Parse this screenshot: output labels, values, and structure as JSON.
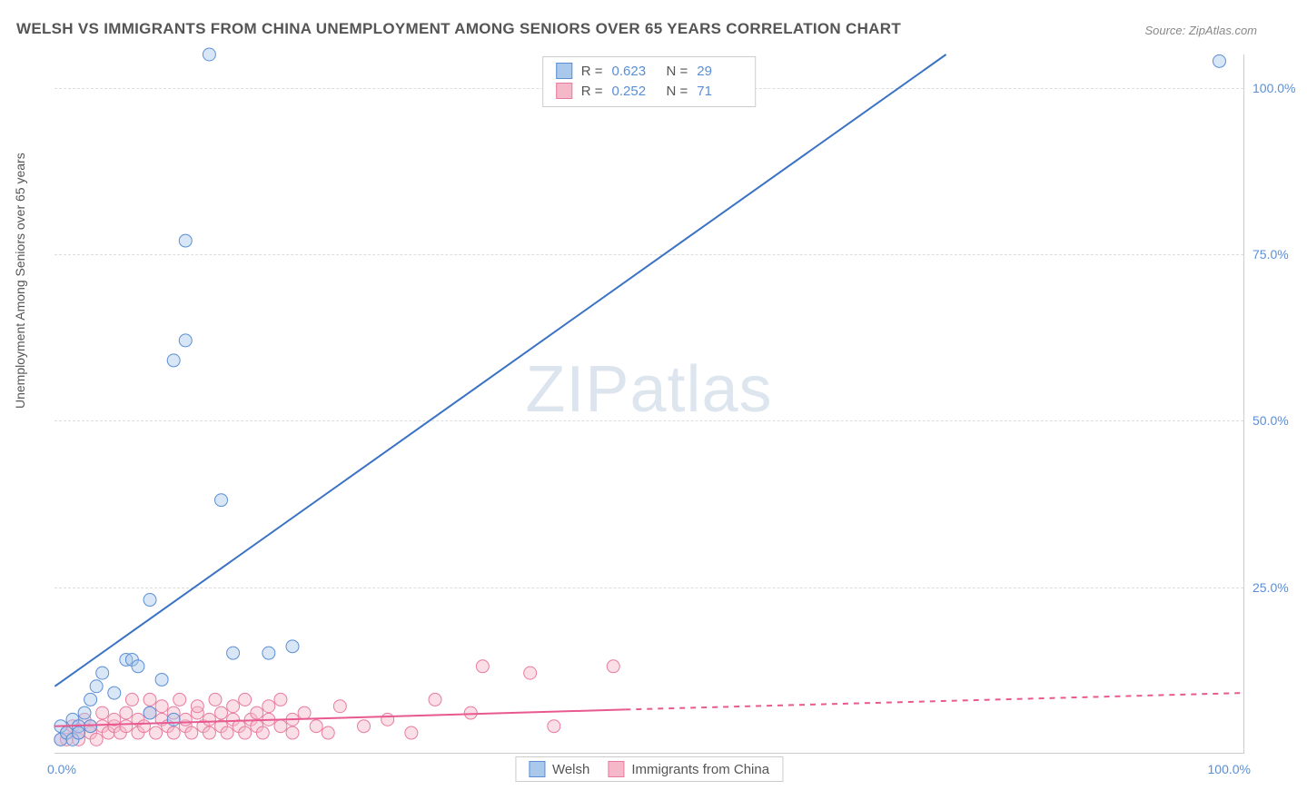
{
  "title": "WELSH VS IMMIGRANTS FROM CHINA UNEMPLOYMENT AMONG SENIORS OVER 65 YEARS CORRELATION CHART",
  "source": "Source: ZipAtlas.com",
  "ylabel": "Unemployment Among Seniors over 65 years",
  "watermark_a": "ZIP",
  "watermark_b": "atlas",
  "chart": {
    "type": "scatter",
    "xlim": [
      0,
      100
    ],
    "ylim": [
      0,
      105
    ],
    "xtick_labels": {
      "min": "0.0%",
      "max": "100.0%"
    },
    "ytick_labels": [
      "25.0%",
      "50.0%",
      "75.0%",
      "100.0%"
    ],
    "ytick_values": [
      25,
      50,
      75,
      100
    ],
    "background_color": "#ffffff",
    "grid_color": "#dddddd",
    "axis_color": "#cccccc",
    "tick_label_color": "#5a8fd6",
    "marker_radius": 7,
    "marker_opacity": 0.45,
    "series": [
      {
        "name": "Welsh",
        "color_fill": "#a9c8ec",
        "color_stroke": "#5a8fd6",
        "line_color": "#3a72c4",
        "line_width": 2,
        "trend": {
          "x1": 0,
          "y1": 10,
          "x2": 75,
          "y2": 105,
          "dashed_after_x": 100
        },
        "R": "0.623",
        "N": "29",
        "points": [
          [
            0.5,
            2
          ],
          [
            0.5,
            4
          ],
          [
            1,
            3
          ],
          [
            1.5,
            2
          ],
          [
            1.5,
            5
          ],
          [
            2,
            4
          ],
          [
            2,
            3
          ],
          [
            2.5,
            6
          ],
          [
            3,
            4
          ],
          [
            3,
            8
          ],
          [
            3.5,
            10
          ],
          [
            4,
            12
          ],
          [
            5,
            9
          ],
          [
            6,
            14
          ],
          [
            6.5,
            14
          ],
          [
            7,
            13
          ],
          [
            8,
            6
          ],
          [
            8,
            23
          ],
          [
            9,
            11
          ],
          [
            10,
            5
          ],
          [
            10,
            59
          ],
          [
            11,
            62
          ],
          [
            11,
            77
          ],
          [
            13,
            105
          ],
          [
            14,
            38
          ],
          [
            15,
            15
          ],
          [
            18,
            15
          ],
          [
            20,
            16
          ],
          [
            98,
            104
          ]
        ]
      },
      {
        "name": "Immigrants from China",
        "color_fill": "#f5b8c9",
        "color_stroke": "#e87ba0",
        "line_color": "#e85a8f",
        "line_width": 2,
        "trend": {
          "x1": 0,
          "y1": 4,
          "x2": 48,
          "y2": 6.5,
          "dashed_after_x": 48,
          "x3": 100,
          "y3": 9
        },
        "R": "0.252",
        "N": "71",
        "points": [
          [
            0.5,
            2
          ],
          [
            1,
            2
          ],
          [
            1,
            3
          ],
          [
            1.5,
            4
          ],
          [
            2,
            2
          ],
          [
            2,
            3
          ],
          [
            2.5,
            5
          ],
          [
            3,
            3
          ],
          [
            3,
            4
          ],
          [
            3.5,
            2
          ],
          [
            4,
            4
          ],
          [
            4,
            6
          ],
          [
            4.5,
            3
          ],
          [
            5,
            4
          ],
          [
            5,
            5
          ],
          [
            5.5,
            3
          ],
          [
            6,
            4
          ],
          [
            6,
            6
          ],
          [
            6.5,
            8
          ],
          [
            7,
            3
          ],
          [
            7,
            5
          ],
          [
            7.5,
            4
          ],
          [
            8,
            6
          ],
          [
            8,
            8
          ],
          [
            8.5,
            3
          ],
          [
            9,
            5
          ],
          [
            9,
            7
          ],
          [
            9.5,
            4
          ],
          [
            10,
            3
          ],
          [
            10,
            6
          ],
          [
            10.5,
            8
          ],
          [
            11,
            4
          ],
          [
            11,
            5
          ],
          [
            11.5,
            3
          ],
          [
            12,
            6
          ],
          [
            12,
            7
          ],
          [
            12.5,
            4
          ],
          [
            13,
            5
          ],
          [
            13,
            3
          ],
          [
            13.5,
            8
          ],
          [
            14,
            4
          ],
          [
            14,
            6
          ],
          [
            14.5,
            3
          ],
          [
            15,
            5
          ],
          [
            15,
            7
          ],
          [
            15.5,
            4
          ],
          [
            16,
            3
          ],
          [
            16,
            8
          ],
          [
            16.5,
            5
          ],
          [
            17,
            4
          ],
          [
            17,
            6
          ],
          [
            17.5,
            3
          ],
          [
            18,
            7
          ],
          [
            18,
            5
          ],
          [
            19,
            4
          ],
          [
            19,
            8
          ],
          [
            20,
            3
          ],
          [
            20,
            5
          ],
          [
            21,
            6
          ],
          [
            22,
            4
          ],
          [
            23,
            3
          ],
          [
            24,
            7
          ],
          [
            26,
            4
          ],
          [
            28,
            5
          ],
          [
            30,
            3
          ],
          [
            32,
            8
          ],
          [
            35,
            6
          ],
          [
            36,
            13
          ],
          [
            40,
            12
          ],
          [
            42,
            4
          ],
          [
            47,
            13
          ]
        ]
      }
    ]
  },
  "legend_top": {
    "rows": [
      {
        "swatch_fill": "#a9c8ec",
        "swatch_stroke": "#5a8fd6",
        "r_label": "R =",
        "r_val": "0.623",
        "n_label": "N =",
        "n_val": "29"
      },
      {
        "swatch_fill": "#f5b8c9",
        "swatch_stroke": "#e87ba0",
        "r_label": "R =",
        "r_val": "0.252",
        "n_label": "N =",
        "n_val": "71"
      }
    ]
  },
  "legend_bottom": {
    "items": [
      {
        "swatch_fill": "#a9c8ec",
        "swatch_stroke": "#5a8fd6",
        "label": "Welsh"
      },
      {
        "swatch_fill": "#f5b8c9",
        "swatch_stroke": "#e87ba0",
        "label": "Immigrants from China"
      }
    ]
  }
}
